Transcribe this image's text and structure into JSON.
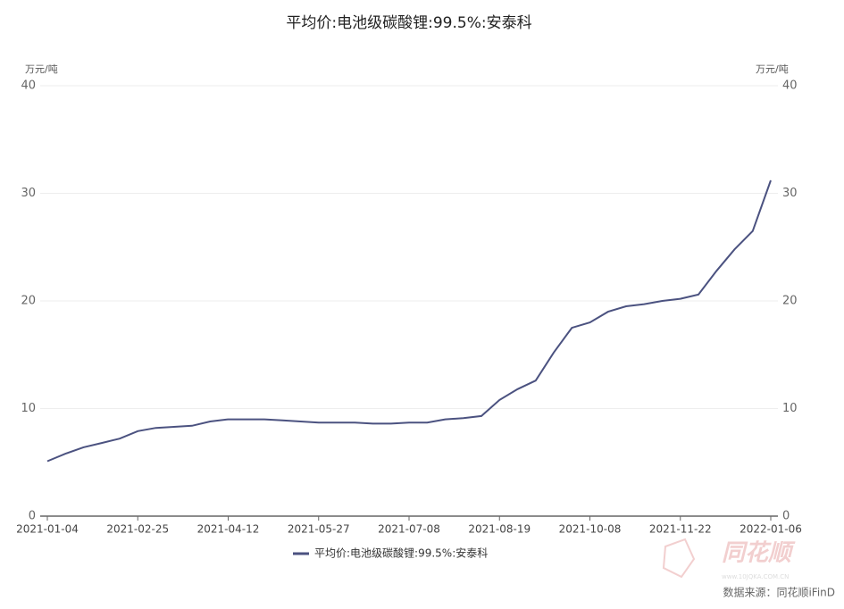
{
  "chart_data": {
    "type": "line",
    "title": "平均价:电池级碳酸锂:99.5%:安泰科",
    "y_unit": "万元/吨",
    "y2_unit": "万元/吨",
    "categories": [
      "2021-01-04",
      null,
      null,
      null,
      null,
      "2021-02-25",
      null,
      null,
      null,
      null,
      "2021-04-12",
      null,
      null,
      null,
      null,
      "2021-05-27",
      null,
      null,
      null,
      null,
      "2021-07-08",
      null,
      null,
      null,
      null,
      "2021-08-19",
      null,
      null,
      null,
      null,
      "2021-10-08",
      null,
      null,
      null,
      null,
      "2021-11-22",
      null,
      null,
      null,
      null,
      "2022-01-06"
    ],
    "series": [
      {
        "name": "平均价:电池级碳酸锂:99.5%:安泰科",
        "color": "#4b5280",
        "values": [
          5.1,
          5.8,
          6.4,
          6.8,
          7.2,
          7.9,
          8.2,
          8.3,
          8.4,
          8.8,
          9.0,
          9.0,
          9.0,
          8.9,
          8.8,
          8.7,
          8.7,
          8.7,
          8.6,
          8.6,
          8.7,
          8.7,
          9.0,
          9.1,
          9.3,
          10.8,
          11.8,
          12.6,
          15.2,
          17.5,
          18.0,
          19.0,
          19.5,
          19.7,
          20.0,
          20.2,
          20.6,
          22.8,
          24.8,
          26.5,
          31.2
        ]
      }
    ],
    "ylim": [
      0,
      40
    ],
    "yticks": [
      0,
      10,
      20,
      30,
      40
    ],
    "y2lim": [
      0,
      40
    ],
    "y2ticks": [
      0,
      10,
      20,
      30,
      40
    ],
    "grid": true,
    "watermark": "同花顺",
    "watermark_url": "www.10JQKA.COM.CN",
    "source": "数据来源：同花顺iFinD"
  }
}
